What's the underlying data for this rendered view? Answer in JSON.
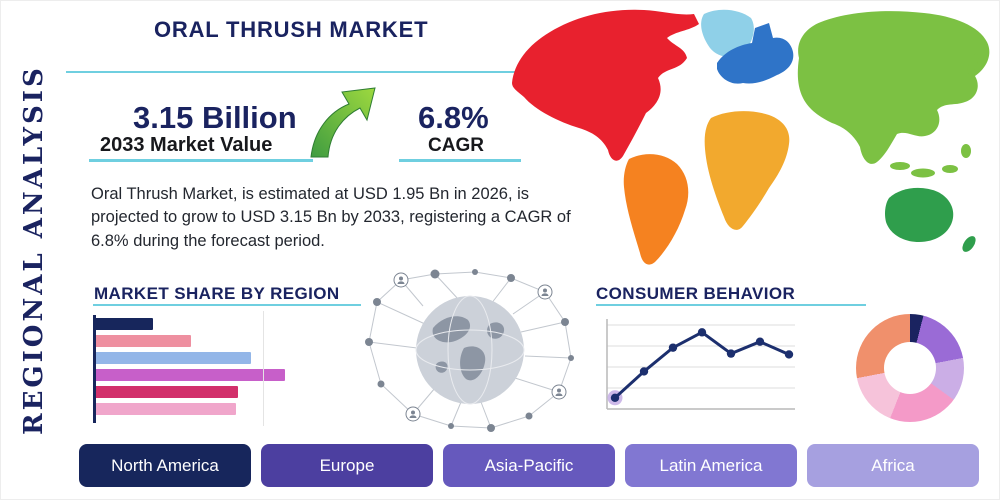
{
  "theme": {
    "navy": "#1a2360",
    "teal": "#6fcfe0",
    "text_dark": "#22262e",
    "arrow_green_dark": "#3f9c40",
    "arrow_green_light": "#9ed93f",
    "background": "#ffffff"
  },
  "side_label": "REGIONAL ANALYSIS",
  "title": "ORAL THRUSH MARKET",
  "stats": {
    "market_value": "3.15 Billion",
    "market_value_label": "2033 Market Value",
    "cagr_value": "6.8%",
    "cagr_label": "CAGR"
  },
  "description": "Oral Thrush Market, is estimated at USD 1.95 Bn in 2026, is projected to grow to USD 3.15 Bn by 2033, registering a CAGR of 6.8% during the forecast period.",
  "sections": {
    "market_share_heading": "MARKET SHARE BY REGION",
    "consumer_behavior_heading": "CONSUMER BEHAVIOR"
  },
  "region_buttons": [
    {
      "label": "North America",
      "color": "#17265c"
    },
    {
      "label": "Europe",
      "color": "#4c3fa0"
    },
    {
      "label": "Asia-Pacific",
      "color": "#6659bd"
    },
    {
      "label": "Latin America",
      "color": "#8177d2"
    },
    {
      "label": "Africa",
      "color": "#a6a0e0"
    }
  ],
  "map": {
    "continents": [
      {
        "name": "north-america",
        "color": "#e8212e"
      },
      {
        "name": "greenland",
        "color": "#8fd0e8"
      },
      {
        "name": "south-america",
        "color": "#f58220"
      },
      {
        "name": "europe",
        "color": "#2f74c8"
      },
      {
        "name": "africa",
        "color": "#f2a92e"
      },
      {
        "name": "asia",
        "color": "#7cc143"
      },
      {
        "name": "southeast-asia",
        "color": "#7cc143"
      },
      {
        "name": "japan",
        "color": "#7cc143"
      },
      {
        "name": "australia",
        "color": "#2f9e4c"
      },
      {
        "name": "new-zealand",
        "color": "#2f9e4c"
      }
    ]
  },
  "chart_data": [
    {
      "id": "market_share_by_region",
      "type": "bar",
      "orientation": "horizontal",
      "title": "MARKET SHARE BY REGION",
      "categories": null,
      "note": "six unlabeled horizontal bars; lengths estimated relative to longest bar = 100",
      "values": [
        30,
        50,
        82,
        100,
        75,
        74
      ],
      "xlim": [
        0,
        100
      ],
      "colors": [
        "#17265c",
        "#ee8fa0",
        "#93b6e8",
        "#c75fc9",
        "#d2306b",
        "#f0a6cb"
      ],
      "grid": false,
      "legend": false
    },
    {
      "id": "consumer_behavior",
      "type": "line",
      "title": "CONSUMER BEHAVIOR",
      "x": [
        1,
        2,
        3,
        4,
        5,
        6,
        7
      ],
      "note": "unlabeled axes; values estimated 0-100 from gridlines",
      "values": [
        12,
        43,
        71,
        89,
        64,
        78,
        63
      ],
      "ylim": [
        0,
        100
      ],
      "color": "#1c2f6e",
      "marker": "circle",
      "first_point_halo_color": "#cdb9e9",
      "grid": true,
      "legend": false
    },
    {
      "id": "regional_distribution_donut",
      "type": "pie",
      "donut": true,
      "hole_ratio": 0.48,
      "note": "unlabeled donut; shares estimated, clockwise from 12 o'clock",
      "values": [
        4,
        18,
        13,
        21,
        16,
        28
      ],
      "colors": [
        "#1a2360",
        "#9a6bd6",
        "#cbaee6",
        "#f49ac8",
        "#f6c3da",
        "#f0906c"
      ],
      "legend": false
    }
  ]
}
